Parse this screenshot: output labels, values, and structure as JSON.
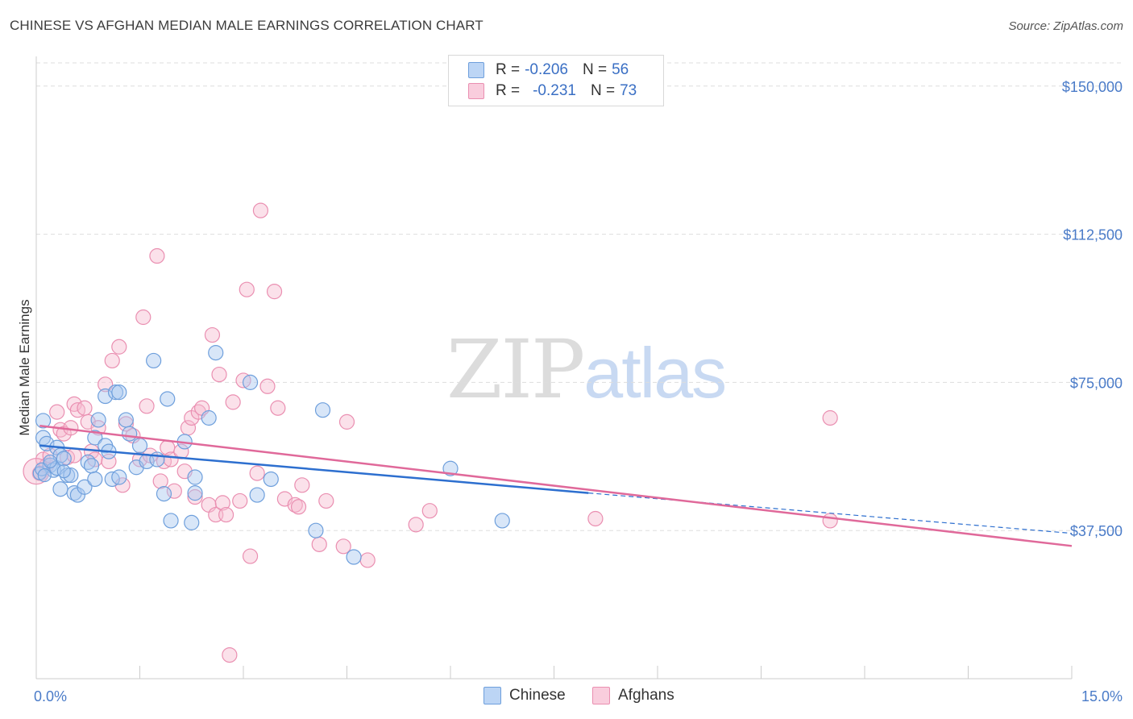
{
  "title": "CHINESE VS AFGHAN MEDIAN MALE EARNINGS CORRELATION CHART",
  "source": "Source: ZipAtlas.com",
  "watermark": {
    "zip": "ZIP",
    "atlas": "atlas"
  },
  "colors": {
    "chinese_fill": "#a9c8f0",
    "chinese_stroke": "#6e9fdc",
    "chinese_line": "#2d6fcf",
    "afghan_fill": "#f6bcd0",
    "afghan_stroke": "#ea8fb1",
    "afghan_line": "#e0699a",
    "grid": "#dddddd",
    "tick_text": "#4a7bc8"
  },
  "legend": {
    "chinese": {
      "r_label": "R =",
      "r_value": "-0.206",
      "n_label": "N =",
      "n_value": "56"
    },
    "afghans": {
      "r_label": "R =",
      "r_value": "-0.231",
      "n_label": "N =",
      "n_value": "73"
    }
  },
  "bottom_legend": {
    "chinese": "Chinese",
    "afghans": "Afghans"
  },
  "chart_data": {
    "type": "scatter",
    "title": "CHINESE VS AFGHAN MEDIAN MALE EARNINGS CORRELATION CHART",
    "xlabel": "",
    "ylabel": "Median Male Earnings",
    "xlim": [
      0,
      15
    ],
    "ylim": [
      0,
      157500
    ],
    "x_tick_labels": {
      "left": "0.0%",
      "right": "15.0%"
    },
    "y_ticks": [
      {
        "value": 37500,
        "label": "$37,500"
      },
      {
        "value": 75000,
        "label": "$75,000"
      },
      {
        "value": 112500,
        "label": "$112,500"
      },
      {
        "value": 150000,
        "label": "$150,000"
      }
    ],
    "series": [
      {
        "name": "Chinese",
        "trend": {
          "x0": 0.05,
          "y0": 59000,
          "x1": 8.0,
          "y1": 47000,
          "x_dash_end": 15.0,
          "y_dash_end": 36800
        },
        "points": [
          [
            0.1,
            65300
          ],
          [
            0.1,
            61000
          ],
          [
            0.15,
            59500
          ],
          [
            0.2,
            54000
          ],
          [
            0.25,
            52800
          ],
          [
            0.3,
            58500
          ],
          [
            0.3,
            53300
          ],
          [
            0.35,
            56500
          ],
          [
            0.35,
            48000
          ],
          [
            0.4,
            55700
          ],
          [
            0.45,
            51500
          ],
          [
            0.5,
            51500
          ],
          [
            0.55,
            47000
          ],
          [
            0.6,
            46500
          ],
          [
            0.7,
            48500
          ],
          [
            0.75,
            54800
          ],
          [
            0.8,
            53900
          ],
          [
            0.85,
            61000
          ],
          [
            0.85,
            50500
          ],
          [
            0.9,
            65500
          ],
          [
            1.0,
            71500
          ],
          [
            1.0,
            59000
          ],
          [
            1.05,
            57500
          ],
          [
            1.1,
            50500
          ],
          [
            1.15,
            72500
          ],
          [
            1.2,
            72500
          ],
          [
            1.2,
            51000
          ],
          [
            1.3,
            65500
          ],
          [
            1.35,
            62000
          ],
          [
            1.45,
            53500
          ],
          [
            1.5,
            59000
          ],
          [
            1.6,
            55000
          ],
          [
            1.7,
            80500
          ],
          [
            1.75,
            55500
          ],
          [
            1.85,
            46800
          ],
          [
            1.9,
            70800
          ],
          [
            1.95,
            40000
          ],
          [
            2.15,
            60000
          ],
          [
            2.25,
            39500
          ],
          [
            2.3,
            47000
          ],
          [
            2.3,
            51000
          ],
          [
            2.5,
            66000
          ],
          [
            2.6,
            82500
          ],
          [
            3.1,
            75000
          ],
          [
            3.2,
            46500
          ],
          [
            3.4,
            50500
          ],
          [
            4.05,
            37500
          ],
          [
            4.15,
            68000
          ],
          [
            4.6,
            30800
          ],
          [
            6.0,
            53200
          ],
          [
            6.75,
            40000
          ],
          [
            0.05,
            52000
          ],
          [
            0.08,
            53000
          ],
          [
            0.12,
            51500
          ],
          [
            0.2,
            55000
          ],
          [
            0.4,
            52500
          ]
        ]
      },
      {
        "name": "Afghans",
        "trend": {
          "x0": 0.05,
          "y0": 64000,
          "x1": 15.0,
          "y1": 33600
        },
        "points": [
          [
            0.05,
            52000
          ],
          [
            0.1,
            55500
          ],
          [
            0.15,
            54000
          ],
          [
            0.2,
            56500
          ],
          [
            0.3,
            67500
          ],
          [
            0.35,
            63000
          ],
          [
            0.4,
            62000
          ],
          [
            0.45,
            56000
          ],
          [
            0.5,
            63500
          ],
          [
            0.55,
            56500
          ],
          [
            0.55,
            69500
          ],
          [
            0.6,
            68000
          ],
          [
            0.7,
            68500
          ],
          [
            0.75,
            65000
          ],
          [
            0.8,
            57500
          ],
          [
            0.85,
            55500
          ],
          [
            0.9,
            63500
          ],
          [
            1.0,
            74500
          ],
          [
            1.05,
            55000
          ],
          [
            1.1,
            80500
          ],
          [
            1.2,
            84000
          ],
          [
            1.25,
            49000
          ],
          [
            1.3,
            64500
          ],
          [
            1.4,
            61500
          ],
          [
            1.5,
            55500
          ],
          [
            1.55,
            91500
          ],
          [
            1.6,
            69000
          ],
          [
            1.65,
            56500
          ],
          [
            1.75,
            107000
          ],
          [
            1.8,
            50000
          ],
          [
            1.85,
            55000
          ],
          [
            1.9,
            58500
          ],
          [
            1.95,
            55500
          ],
          [
            2.0,
            47500
          ],
          [
            2.1,
            57500
          ],
          [
            2.15,
            52500
          ],
          [
            2.2,
            63500
          ],
          [
            2.25,
            66000
          ],
          [
            2.3,
            46000
          ],
          [
            2.35,
            67500
          ],
          [
            2.4,
            68500
          ],
          [
            2.5,
            44000
          ],
          [
            2.55,
            87000
          ],
          [
            2.6,
            41500
          ],
          [
            2.65,
            77000
          ],
          [
            2.7,
            44500
          ],
          [
            2.75,
            41500
          ],
          [
            2.8,
            6000
          ],
          [
            2.85,
            70000
          ],
          [
            2.95,
            45000
          ],
          [
            3.0,
            75500
          ],
          [
            3.05,
            98500
          ],
          [
            3.1,
            31000
          ],
          [
            3.2,
            52000
          ],
          [
            3.25,
            118500
          ],
          [
            3.35,
            74000
          ],
          [
            3.45,
            98000
          ],
          [
            3.5,
            68500
          ],
          [
            3.6,
            45500
          ],
          [
            3.75,
            44000
          ],
          [
            3.8,
            43500
          ],
          [
            3.85,
            49000
          ],
          [
            4.1,
            34000
          ],
          [
            4.2,
            45000
          ],
          [
            4.45,
            33500
          ],
          [
            4.5,
            65000
          ],
          [
            4.8,
            30000
          ],
          [
            5.5,
            39000
          ],
          [
            5.7,
            42500
          ],
          [
            8.1,
            40500
          ],
          [
            11.5,
            40000
          ],
          [
            11.5,
            66000
          ],
          [
            0.0,
            52500
          ]
        ]
      }
    ]
  }
}
